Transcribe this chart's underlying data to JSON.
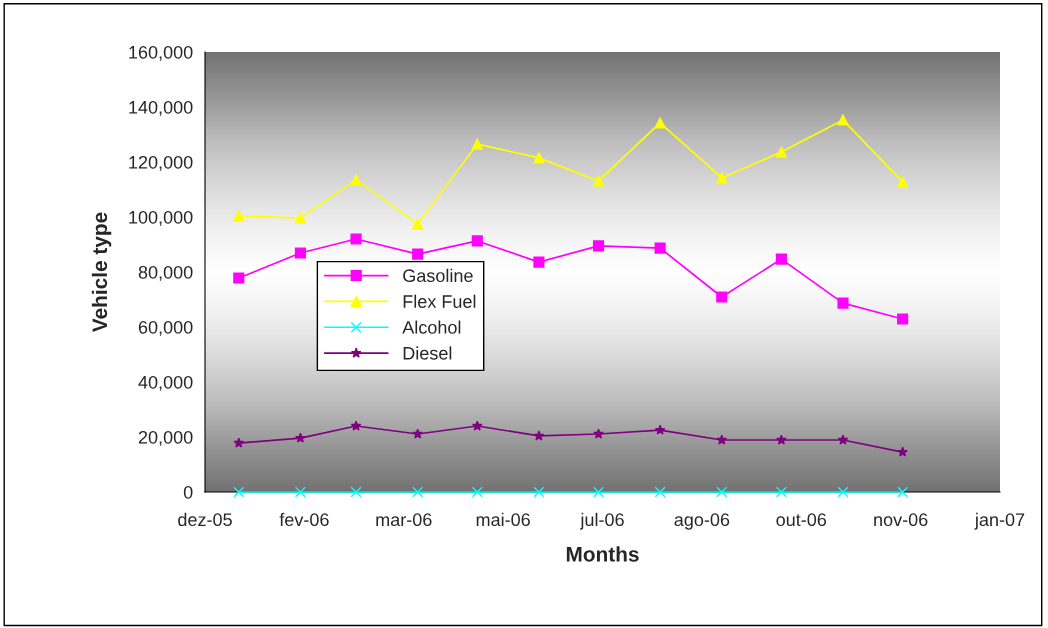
{
  "chart_data": {
    "type": "line",
    "xlabel": "Months",
    "ylabel": "Vehicle type",
    "x": [
      "2006-01-01",
      "2006-02-01",
      "2006-03-01",
      "2006-04-01",
      "2006-05-01",
      "2006-06-01",
      "2006-07-01",
      "2006-08-01",
      "2006-09-01",
      "2006-10-01",
      "2006-11-01",
      "2006-12-01"
    ],
    "series": [
      {
        "name": "Gasoline",
        "color": "#ff00ff",
        "marker": "square",
        "values": [
          77800,
          86900,
          92000,
          86500,
          91300,
          83600,
          89500,
          88700,
          70900,
          84700,
          68700,
          62900
        ]
      },
      {
        "name": "Flex Fuel",
        "color": "#ffff00",
        "marker": "triangle",
        "values": [
          100400,
          99600,
          113500,
          97500,
          126500,
          121500,
          113100,
          134200,
          114200,
          123600,
          135300,
          112700
        ]
      },
      {
        "name": "Alcohol",
        "color": "#00ffff",
        "marker": "cross",
        "values": [
          0,
          0,
          0,
          0,
          0,
          0,
          0,
          0,
          0,
          0,
          0,
          0
        ]
      },
      {
        "name": "Diesel",
        "color": "#800080",
        "marker": "star",
        "values": [
          17800,
          19600,
          24000,
          21100,
          24000,
          20400,
          21100,
          22500,
          18900,
          18900,
          18900,
          14500
        ]
      }
    ],
    "xlim": [
      "2005-12-15",
      "2007-01-19"
    ],
    "xticks": [
      {
        "value": "2005-12-15",
        "label": "dez-05"
      },
      {
        "value": "2006-02-03",
        "label": "fev-06"
      },
      {
        "value": "2006-03-25",
        "label": "mar-06"
      },
      {
        "value": "2006-05-14",
        "label": "mai-06"
      },
      {
        "value": "2006-07-03",
        "label": "jul-06"
      },
      {
        "value": "2006-08-22",
        "label": "ago-06"
      },
      {
        "value": "2006-10-11",
        "label": "out-06"
      },
      {
        "value": "2006-11-30",
        "label": "nov-06"
      },
      {
        "value": "2007-01-19",
        "label": "jan-07"
      }
    ],
    "ylim": [
      0,
      160000
    ],
    "yticks": [
      {
        "value": 0,
        "label": "0"
      },
      {
        "value": 20000,
        "label": "20,000"
      },
      {
        "value": 40000,
        "label": "40,000"
      },
      {
        "value": 60000,
        "label": "60,000"
      },
      {
        "value": 80000,
        "label": "80,000"
      },
      {
        "value": 100000,
        "label": "100,000"
      },
      {
        "value": 120000,
        "label": "120,000"
      },
      {
        "value": 140000,
        "label": "140,000"
      },
      {
        "value": 160000,
        "label": "160,000"
      }
    ],
    "grid": false,
    "legend": "center left",
    "line_style": "solid"
  }
}
